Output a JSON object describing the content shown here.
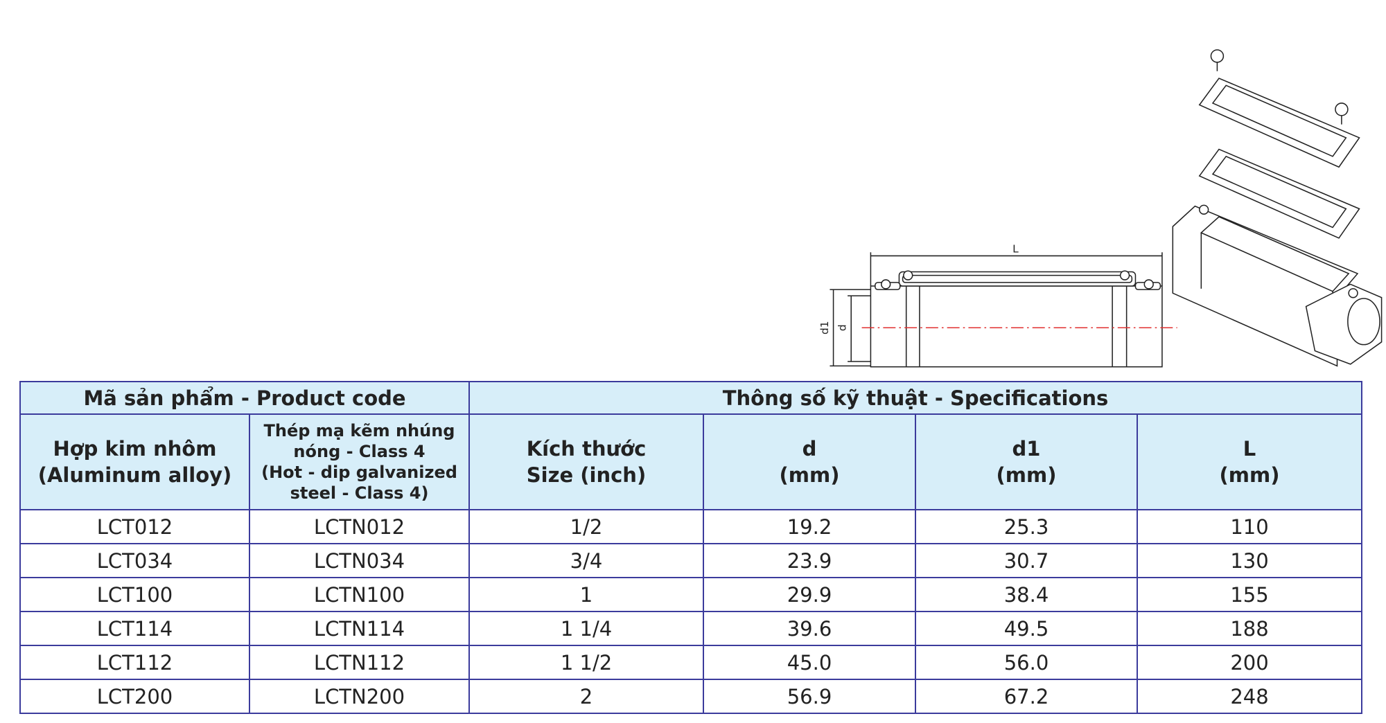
{
  "drawing": {
    "dim_L": "L",
    "dim_d1": "d1",
    "dim_d": "d"
  },
  "table": {
    "header_groups": [
      "Mã sản phẩm - Product code",
      "Thông số kỹ thuật - Specifications"
    ],
    "columns": [
      [
        "Hợp kim nhôm",
        "(Aluminum alloy)"
      ],
      [
        "Thép mạ kẽm nhúng",
        "nóng - Class 4",
        "(Hot - dip galvanized",
        "steel - Class 4)"
      ],
      [
        "Kích thước",
        "Size (inch)"
      ],
      [
        "d",
        "(mm)"
      ],
      [
        "d1",
        "(mm)"
      ],
      [
        "L",
        "(mm)"
      ]
    ],
    "rows": [
      [
        "LCT012",
        "LCTN012",
        "1/2",
        "19.2",
        "25.3",
        "110"
      ],
      [
        "LCT034",
        "LCTN034",
        "3/4",
        "23.9",
        "30.7",
        "130"
      ],
      [
        "LCT100",
        "LCTN100",
        "1",
        "29.9",
        "38.4",
        "155"
      ],
      [
        "LCT114",
        "LCTN114",
        "1 1/4",
        "39.6",
        "49.5",
        "188"
      ],
      [
        "LCT112",
        "LCTN112",
        "1 1/2",
        "45.0",
        "56.0",
        "200"
      ],
      [
        "LCT200",
        "LCTN200",
        "2",
        "56.9",
        "67.2",
        "248"
      ]
    ]
  }
}
